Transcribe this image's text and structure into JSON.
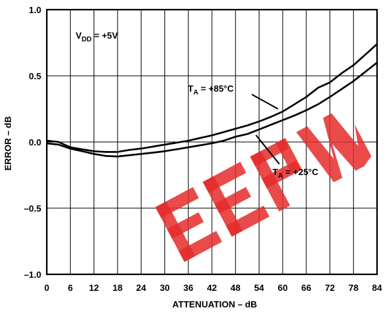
{
  "chart_data": {
    "type": "line",
    "title": "",
    "xlabel": "ATTENUATION – dB",
    "ylabel": "ERROR – dB",
    "xlim": [
      0,
      84
    ],
    "ylim": [
      -1.0,
      1.0
    ],
    "xticks": [
      0,
      6,
      12,
      18,
      24,
      30,
      36,
      42,
      48,
      54,
      60,
      66,
      72,
      78,
      84
    ],
    "xtick_labels": [
      "0",
      "6",
      "12",
      "18",
      "24",
      "30",
      "36",
      "42",
      "48",
      "54",
      "60",
      "66",
      "72",
      "78",
      "84"
    ],
    "yticks": [
      1.0,
      0.5,
      0.0,
      -0.5,
      -1.0
    ],
    "ytick_labels": [
      "1.0",
      "0.5",
      "0.0",
      "–0.5",
      "–1.0"
    ],
    "grid": true,
    "series": [
      {
        "name": "T_A = +85°C",
        "x": [
          0,
          3,
          6,
          9,
          12,
          15,
          18,
          21,
          24,
          27,
          30,
          33,
          36,
          39,
          42,
          45,
          48,
          51,
          54,
          57,
          60,
          63,
          66,
          69,
          72,
          75,
          78,
          81,
          84
        ],
        "y": [
          0.01,
          0.0,
          -0.04,
          -0.055,
          -0.07,
          -0.075,
          -0.075,
          -0.06,
          -0.05,
          -0.035,
          -0.02,
          -0.005,
          0.01,
          0.03,
          0.05,
          0.075,
          0.1,
          0.125,
          0.155,
          0.19,
          0.23,
          0.285,
          0.34,
          0.41,
          0.45,
          0.52,
          0.58,
          0.66,
          0.74
        ]
      },
      {
        "name": "T_A = +25°C",
        "x": [
          0,
          3,
          6,
          9,
          12,
          15,
          18,
          21,
          24,
          27,
          30,
          33,
          36,
          39,
          42,
          45,
          48,
          51,
          54,
          57,
          60,
          63,
          66,
          69,
          72,
          75,
          78,
          81,
          84
        ],
        "y": [
          -0.01,
          -0.02,
          -0.05,
          -0.07,
          -0.09,
          -0.105,
          -0.11,
          -0.1,
          -0.09,
          -0.08,
          -0.07,
          -0.055,
          -0.04,
          -0.025,
          -0.01,
          0.01,
          0.04,
          0.06,
          0.095,
          0.13,
          0.165,
          0.2,
          0.24,
          0.285,
          0.34,
          0.4,
          0.46,
          0.53,
          0.6
        ]
      }
    ],
    "annotations": {
      "vdd": {
        "main": "V",
        "sub": "DD",
        "rest": " = +5V"
      },
      "ta85": {
        "main": "T",
        "sub": "A",
        "rest": " = +85°C"
      },
      "ta25": {
        "main": "T",
        "sub": "A",
        "rest": " = +25°C"
      }
    },
    "watermark": "EEPW"
  }
}
